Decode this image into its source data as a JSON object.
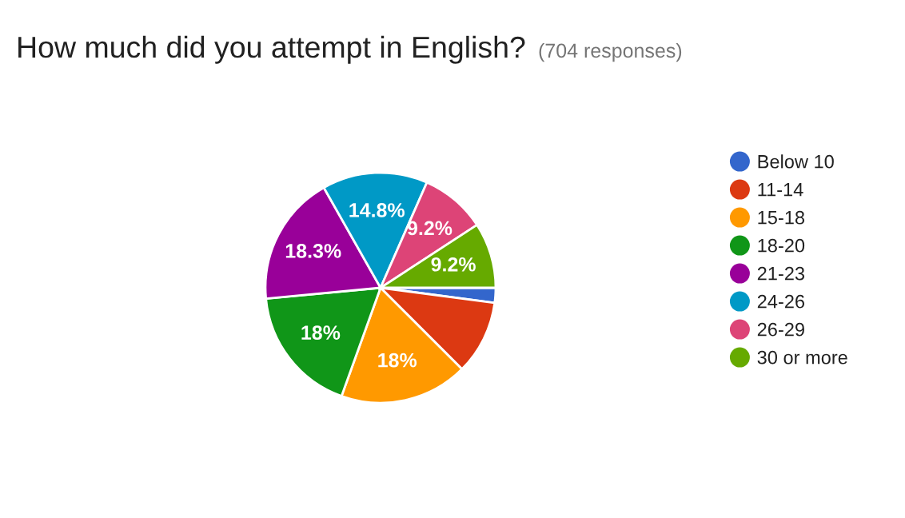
{
  "chart_data": {
    "type": "pie",
    "title": "How much did you attempt in English?",
    "subtitle": "(704 responses)",
    "categories": [
      "Below 10",
      "11-14",
      "15-18",
      "18-20",
      "21-23",
      "24-26",
      "26-29",
      "30 or more"
    ],
    "values": [
      2.1,
      10.4,
      18,
      18,
      18.3,
      14.8,
      9.2,
      9.2
    ],
    "value_labels": [
      null,
      null,
      "18%",
      "18%",
      "18.3%",
      "14.8%",
      "9.2%",
      "9.2%"
    ],
    "colors": [
      "#3366cc",
      "#dc3912",
      "#ff9900",
      "#109618",
      "#990099",
      "#0099c6",
      "#dd4477",
      "#66aa00"
    ],
    "legend": "right"
  }
}
